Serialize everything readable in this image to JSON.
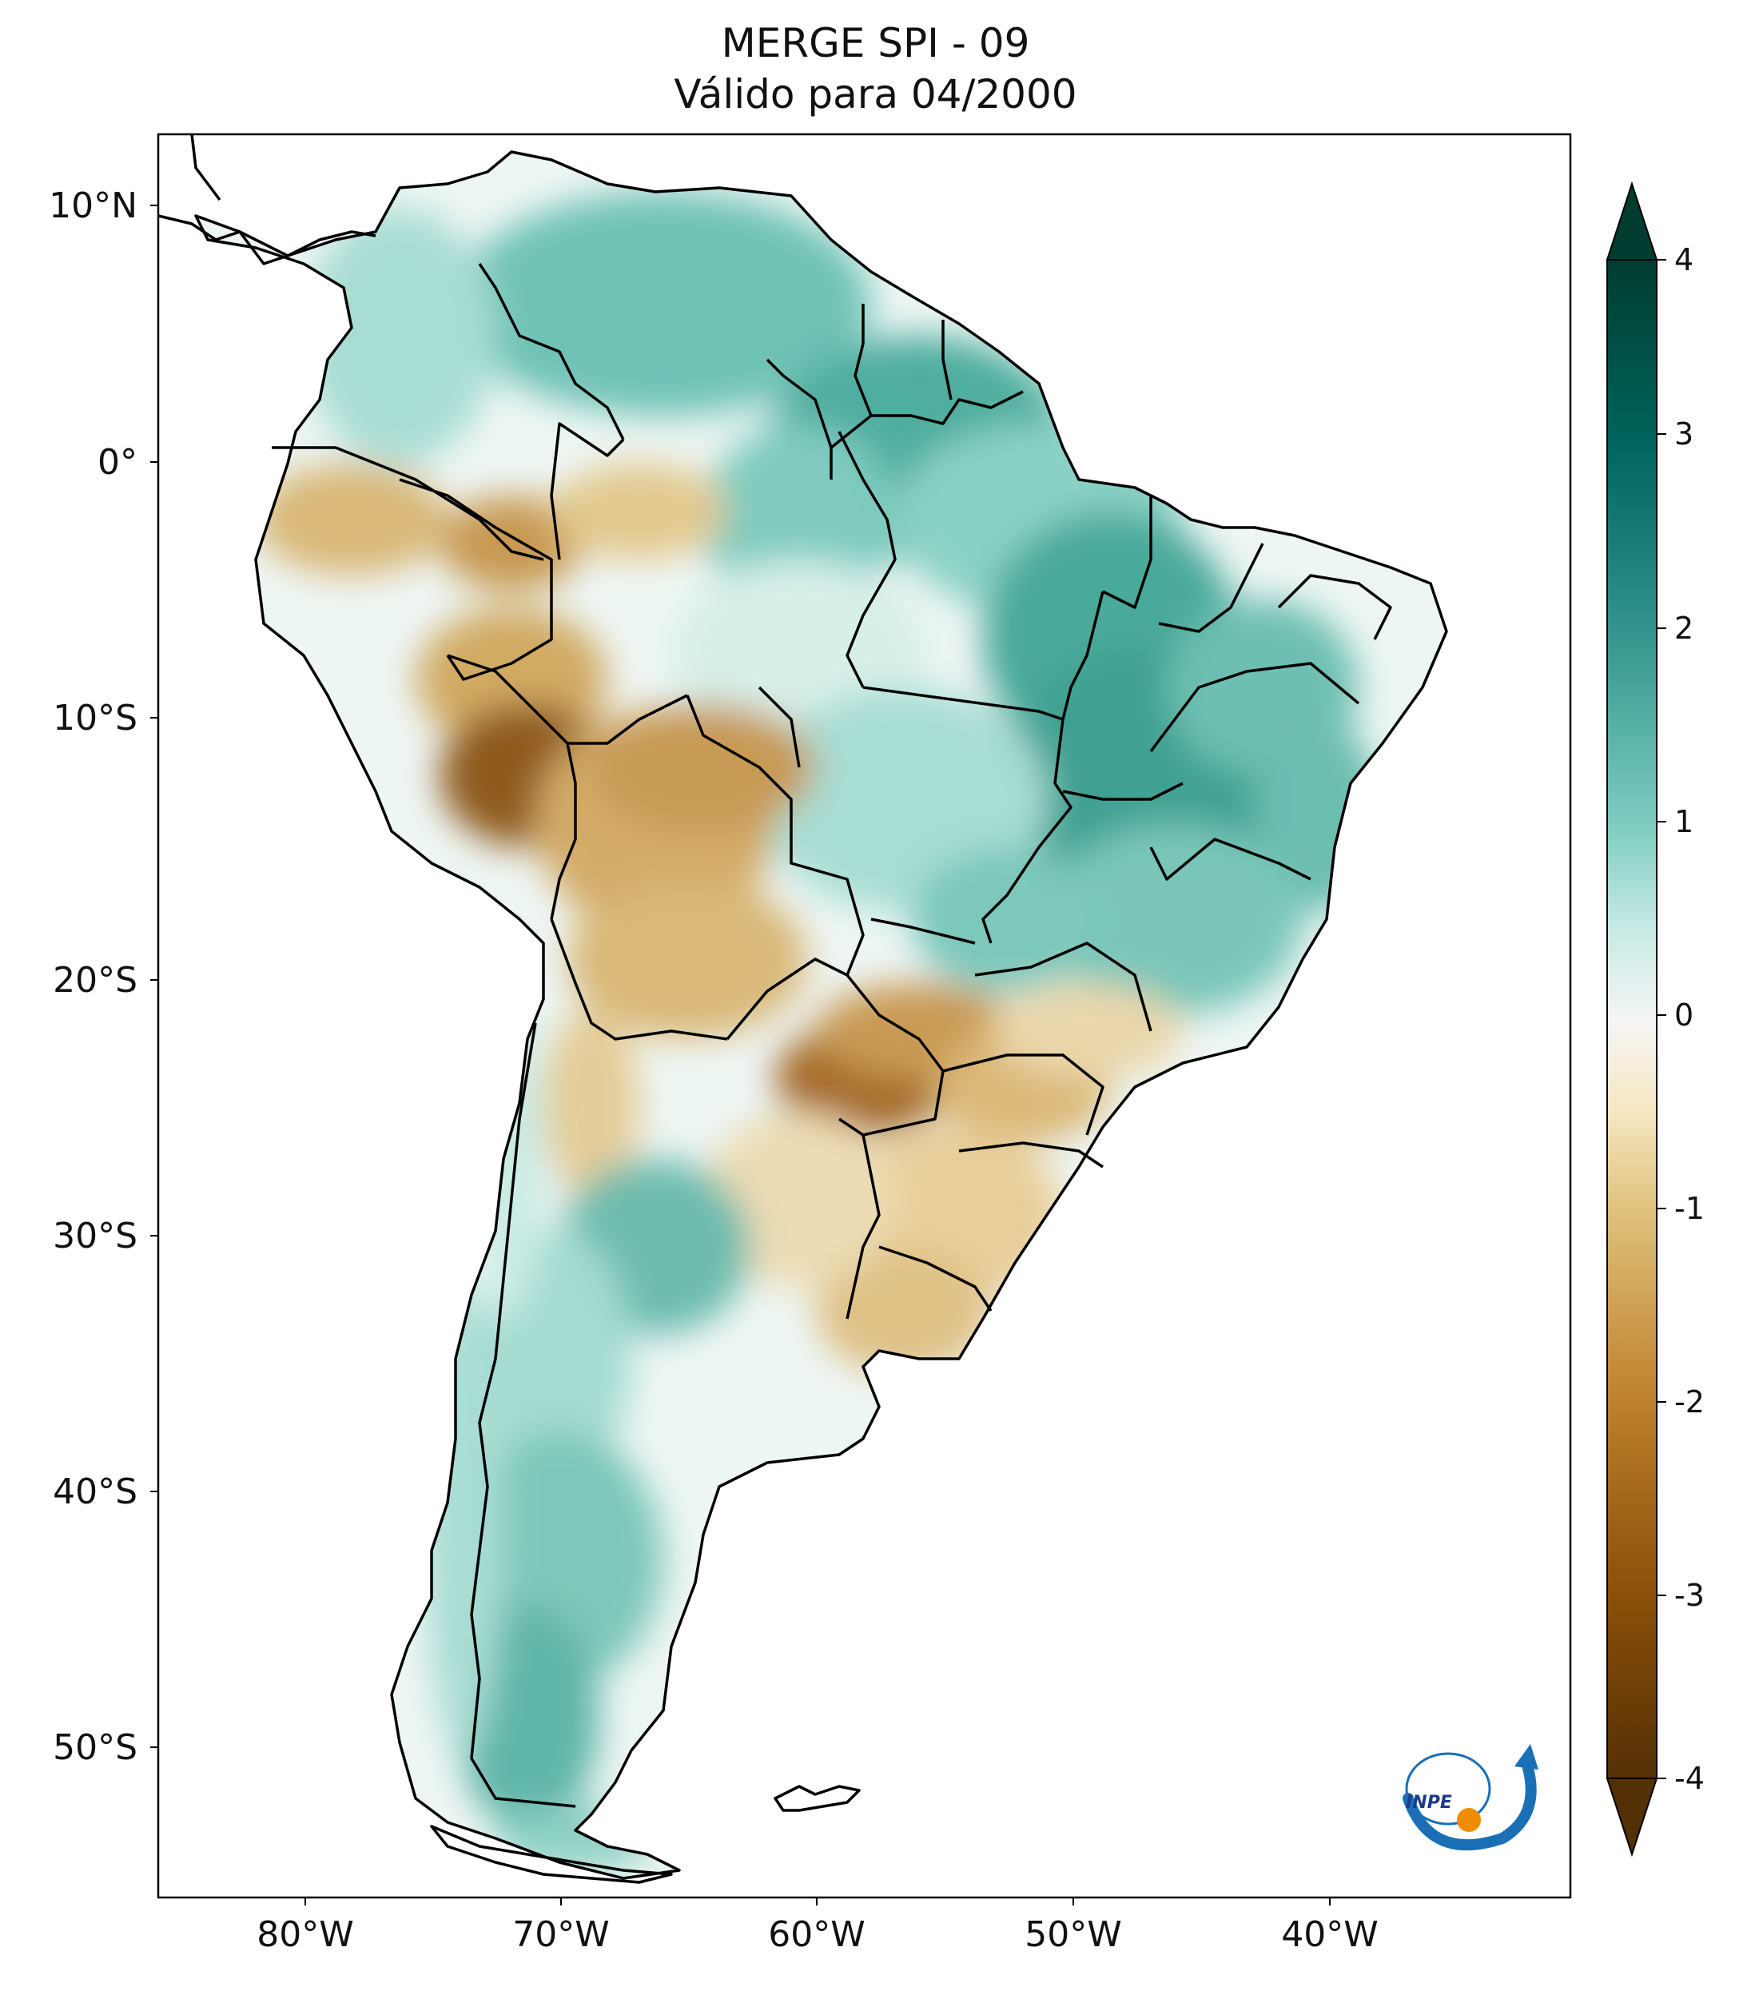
{
  "title": {
    "line1": "MERGE   SPI - 09",
    "line2": "Válido para 04/2000"
  },
  "axes": {
    "lat_ticks": [
      "10°N",
      "0°",
      "10°S",
      "20°S",
      "30°S",
      "40°S",
      "50°S"
    ],
    "lon_ticks": [
      "80°W",
      "70°W",
      "60°W",
      "50°W",
      "40°W"
    ]
  },
  "colorbar": {
    "labels": [
      "4",
      "3",
      "2",
      "1",
      "0",
      "-1",
      "-2",
      "-3",
      "-4"
    ],
    "min": -4,
    "max": 4,
    "extend": "both",
    "colormap": "BrBG",
    "colors": {
      "neg4": "#543005",
      "neg3": "#8c510a",
      "neg2": "#bf812d",
      "neg1": "#dfc27d",
      "neg05": "#f6e8c3",
      "zero": "#f5f5f5",
      "pos05": "#c7eae5",
      "pos1": "#80cdc1",
      "pos2": "#35978f",
      "pos3": "#01665e",
      "pos4": "#003c30"
    }
  },
  "logo": {
    "text": "INPE",
    "colors": {
      "blue": "#1a6fb5",
      "orange": "#f08c00"
    }
  }
}
